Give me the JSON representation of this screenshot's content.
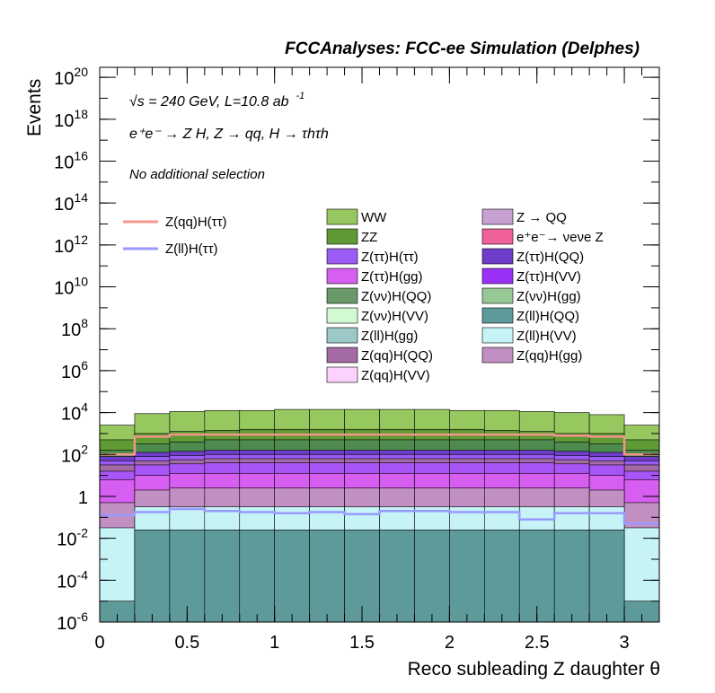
{
  "chart_data": {
    "type": "bar",
    "stacked": true,
    "yscale": "log",
    "title": "FCCAnalyses: FCC-ee Simulation (Delphes)",
    "xlabel": "Reco subleading Z daughter θ",
    "ylabel": "Events",
    "xlim": [
      0,
      3.2
    ],
    "ylim": [
      1e-06,
      3e+20
    ],
    "x_ticks": [
      "0",
      "0.5",
      "1",
      "1.5",
      "2",
      "2.5",
      "3"
    ],
    "x_tick_values": [
      0,
      0.5,
      1,
      1.5,
      2,
      2.5,
      3
    ],
    "y_ticks": [
      {
        "base": "10",
        "exp": "20",
        "value": 1e+20
      },
      {
        "base": "10",
        "exp": "18",
        "value": 1e+18
      },
      {
        "base": "10",
        "exp": "16",
        "value": 1e+16
      },
      {
        "base": "10",
        "exp": "14",
        "value": 100000000000000.0
      },
      {
        "base": "10",
        "exp": "12",
        "value": 1000000000000.0
      },
      {
        "base": "10",
        "exp": "10",
        "value": 10000000000.0
      },
      {
        "base": "10",
        "exp": "8",
        "value": 100000000.0
      },
      {
        "base": "10",
        "exp": "6",
        "value": 1000000.0
      },
      {
        "base": "10",
        "exp": "4",
        "value": 10000.0
      },
      {
        "base": "10",
        "exp": "2",
        "value": 100
      },
      {
        "base": "1",
        "exp": "",
        "value": 1
      },
      {
        "base": "10",
        "exp": "-2",
        "value": 0.01
      },
      {
        "base": "10",
        "exp": "-4",
        "value": 0.0001
      },
      {
        "base": "10",
        "exp": "-6",
        "value": 1e-06
      }
    ],
    "annotations": {
      "energy": "√s = 240 GeV, L=10.8 ab",
      "energy_sup": "-1",
      "process": "e⁺e⁻ → Z H, Z → qq, H → τhτh",
      "selection": "No additional selection"
    },
    "bin_edges": [
      0,
      0.2,
      0.4,
      0.6,
      0.8,
      1.0,
      1.2,
      1.4,
      1.6,
      1.8,
      2.0,
      2.2,
      2.4,
      2.6,
      2.8,
      3.0,
      3.2
    ],
    "stack_boundaries_log10": [
      [
        -5,
        -1.6,
        -1.6,
        -1.6,
        -1.6,
        -1.6,
        -1.6,
        -1.6,
        -1.6,
        -1.6,
        -1.6,
        -1.6,
        -1.6,
        -1.6,
        -1.6,
        -5
      ],
      [
        -1.5,
        -0.5,
        -0.5,
        -0.5,
        -0.5,
        -0.5,
        -0.5,
        -0.5,
        -0.5,
        -0.5,
        -0.5,
        -0.5,
        -0.5,
        -0.5,
        -0.5,
        -1.5
      ],
      [
        -0.3,
        0.3,
        0.4,
        0.4,
        0.4,
        0.4,
        0.4,
        0.4,
        0.4,
        0.4,
        0.4,
        0.4,
        0.4,
        0.4,
        0.3,
        -0.3
      ],
      [
        0.8,
        1.0,
        1.1,
        1.1,
        1.1,
        1.1,
        1.1,
        1.1,
        1.1,
        1.1,
        1.1,
        1.1,
        1.1,
        1.1,
        1.0,
        0.8
      ],
      [
        1.2,
        1.5,
        1.55,
        1.6,
        1.6,
        1.6,
        1.6,
        1.6,
        1.6,
        1.6,
        1.6,
        1.6,
        1.6,
        1.55,
        1.5,
        1.2
      ],
      [
        1.5,
        1.7,
        1.75,
        1.8,
        1.8,
        1.8,
        1.8,
        1.8,
        1.8,
        1.8,
        1.8,
        1.8,
        1.8,
        1.75,
        1.7,
        1.5
      ],
      [
        1.7,
        1.9,
        1.95,
        2.0,
        2.0,
        2.0,
        2.0,
        2.0,
        2.0,
        2.0,
        2.0,
        2.0,
        2.0,
        1.95,
        1.9,
        1.7
      ],
      [
        1.9,
        2.1,
        2.15,
        2.2,
        2.2,
        2.2,
        2.2,
        2.2,
        2.2,
        2.2,
        2.2,
        2.2,
        2.2,
        2.15,
        2.1,
        1.9
      ],
      [
        2.2,
        2.5,
        2.6,
        2.7,
        2.7,
        2.7,
        2.7,
        2.7,
        2.7,
        2.7,
        2.7,
        2.7,
        2.7,
        2.6,
        2.5,
        2.2
      ],
      [
        2.7,
        3.0,
        3.1,
        3.15,
        3.2,
        3.2,
        3.2,
        3.2,
        3.2,
        3.2,
        3.2,
        3.15,
        3.1,
        3.0,
        3.0,
        2.7
      ],
      [
        3.4,
        3.95,
        4.05,
        4.1,
        4.1,
        4.15,
        4.15,
        4.15,
        4.15,
        4.15,
        4.1,
        4.1,
        4.05,
        4.0,
        3.9,
        3.4
      ]
    ],
    "stack_colors": [
      "#5f9a9a",
      "#c6f3f5",
      "#c28fc2",
      "#d65ef0",
      "#a855f7",
      "#a46aa6",
      "#9b5cf5",
      "#6d3cc8",
      "#4e8b4e",
      "#5f9a34",
      "#96c85f"
    ],
    "lines": [
      {
        "name": "Z(qq)H(ττ)",
        "color": "#f4968c",
        "log10_values": [
          2.0,
          2.85,
          2.95,
          2.95,
          2.95,
          2.95,
          2.95,
          2.95,
          2.95,
          2.95,
          2.95,
          2.95,
          2.95,
          2.9,
          2.85,
          2.0
        ]
      },
      {
        "name": "Z(ll)H(ττ)",
        "color": "#9999ff",
        "log10_values": [
          -0.9,
          -0.75,
          -0.6,
          -0.7,
          -0.75,
          -0.8,
          -0.75,
          -0.85,
          -0.7,
          -0.7,
          -0.75,
          -0.75,
          -1.1,
          -0.8,
          -0.8,
          -1.3
        ]
      }
    ],
    "line_legend": [
      {
        "name": "Z(qq)H(ττ)",
        "color": "#f4968c"
      },
      {
        "name": "Z(ll)H(ττ)",
        "color": "#9999ff"
      }
    ],
    "legend_position": "upper-right",
    "legend": [
      {
        "name": "WW",
        "color": "#96c85f"
      },
      {
        "name": "Z → QQ",
        "color": "#c9a0d2"
      },
      {
        "name": "ZZ",
        "color": "#5f9a34"
      },
      {
        "name": "e⁺e⁻→ νeνe Z",
        "color": "#f0609a"
      },
      {
        "name": "Z(ττ)H(ττ)",
        "color": "#9b5cf5"
      },
      {
        "name": "Z(ττ)H(QQ)",
        "color": "#6d3cc8"
      },
      {
        "name": "Z(ττ)H(gg)",
        "color": "#d65ef0"
      },
      {
        "name": "Z(ττ)H(VV)",
        "color": "#9b30f5"
      },
      {
        "name": "Z(νν)H(QQ)",
        "color": "#6a9a6a"
      },
      {
        "name": "Z(νν)H(gg)",
        "color": "#96c896"
      },
      {
        "name": "Z(νν)H(VV)",
        "color": "#d2fad2"
      },
      {
        "name": "Z(ll)H(QQ)",
        "color": "#5f9a9a"
      },
      {
        "name": "Z(ll)H(gg)",
        "color": "#9cc8c8"
      },
      {
        "name": "Z(ll)H(VV)",
        "color": "#c6f3f5"
      },
      {
        "name": "Z(qq)H(QQ)",
        "color": "#a46aa6"
      },
      {
        "name": "Z(qq)H(gg)",
        "color": "#c28fc2"
      },
      {
        "name": "Z(qq)H(VV)",
        "color": "#fcd2fc"
      }
    ]
  }
}
